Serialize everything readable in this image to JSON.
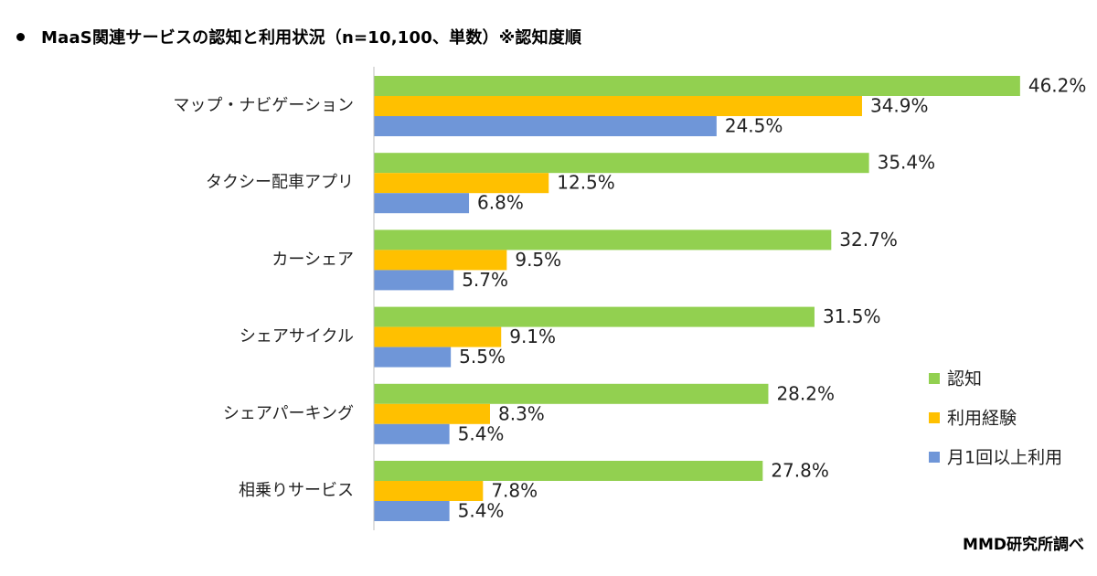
{
  "title": "MaaS関連サービスの認知と利用状況（n=10,100、単数）※認知度順",
  "source": "MMD研究所調べ",
  "colors": {
    "series": [
      "#92d050",
      "#ffc000",
      "#6f96d8"
    ],
    "axis": "#bfbfbf"
  },
  "chart_data": {
    "type": "bar",
    "orientation": "horizontal",
    "categories": [
      "マップ・ナビゲーション",
      "タクシー配車アプリ",
      "カーシェア",
      "シェアサイクル",
      "シェアパーキング",
      "相乗りサービス"
    ],
    "series": [
      {
        "name": "認知",
        "values": [
          46.2,
          35.4,
          32.7,
          31.5,
          28.2,
          27.8
        ],
        "labels": [
          "46.2%",
          "35.4%",
          "32.7%",
          "31.5%",
          "28.2%",
          "27.8%"
        ]
      },
      {
        "name": "利用経験",
        "values": [
          34.9,
          12.5,
          9.5,
          9.1,
          8.3,
          7.8
        ],
        "labels": [
          "34.9%",
          "12.5%",
          "9.5%",
          "9.1%",
          "8.3%",
          "7.8%"
        ]
      },
      {
        "name": "月1回以上利用",
        "values": [
          24.5,
          6.8,
          5.7,
          5.5,
          5.4,
          5.4
        ],
        "labels": [
          "24.5%",
          "6.8%",
          "5.7%",
          "5.5%",
          "5.4%",
          "5.4%"
        ]
      }
    ],
    "unit": "%",
    "xlim": [
      0,
      50
    ],
    "grid": false,
    "legend": "right"
  }
}
